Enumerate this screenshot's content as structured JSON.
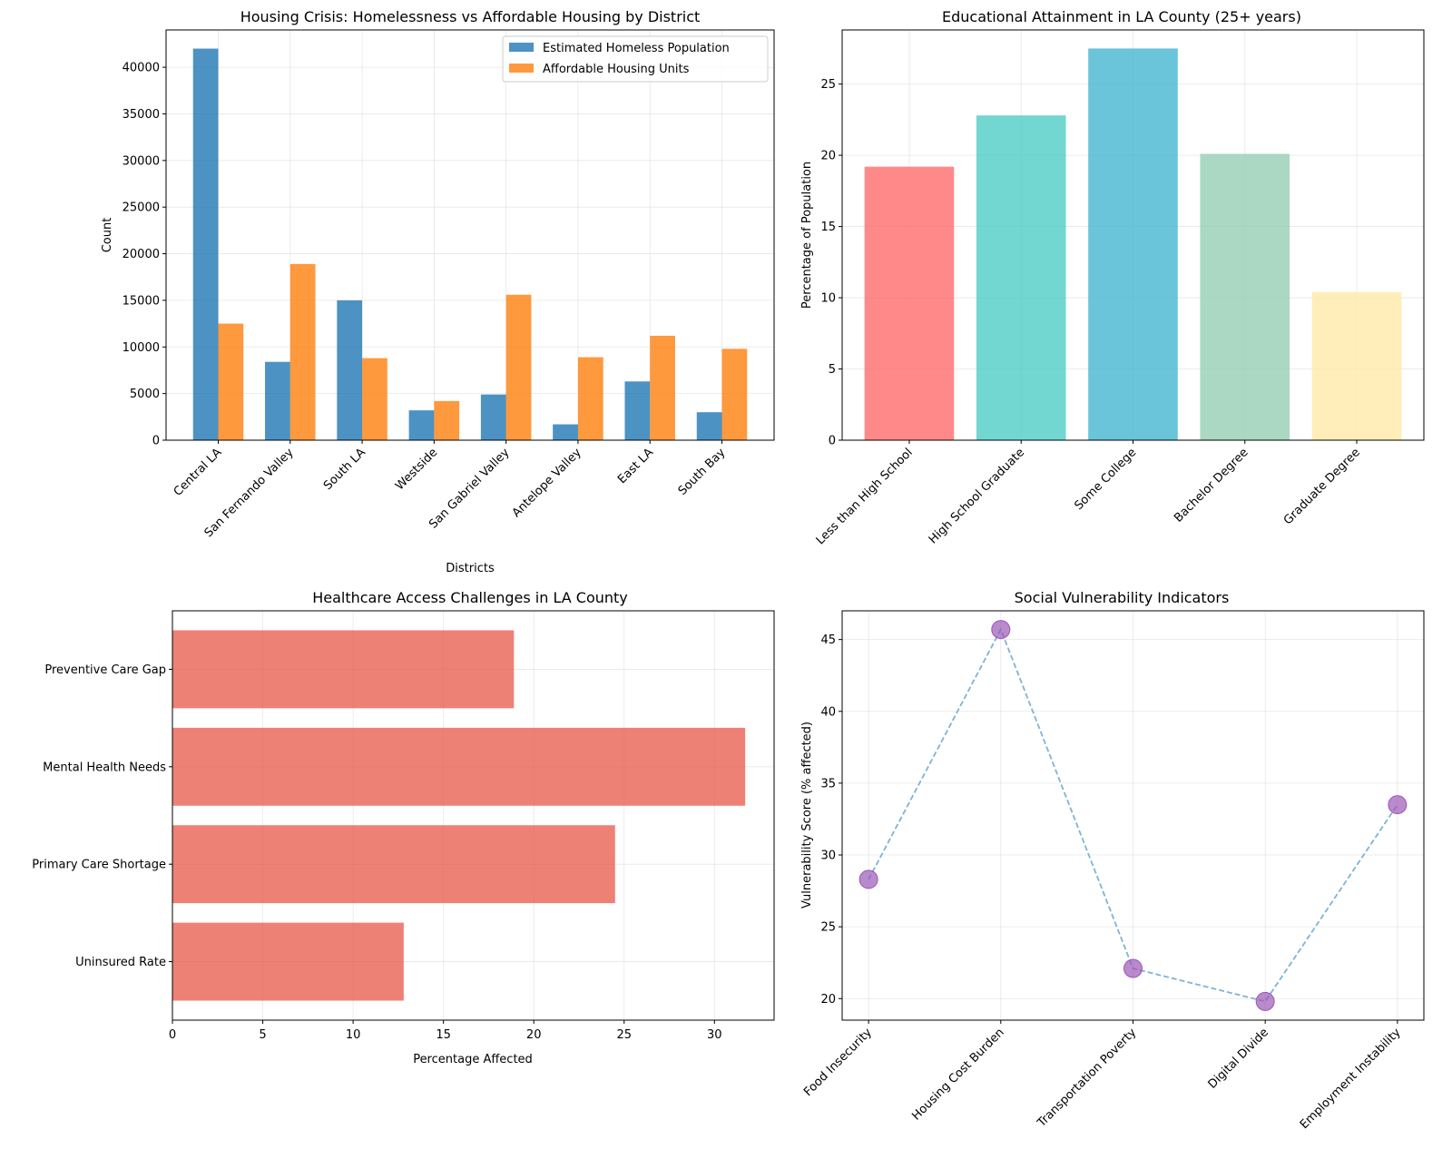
{
  "chart_data": [
    {
      "id": "housing",
      "type": "bar",
      "title": "Housing Crisis: Homelessness vs Affordable Housing by District",
      "xlabel": "Districts",
      "ylabel": "Count",
      "ylim": [
        0,
        44000
      ],
      "yticks": [
        0,
        5000,
        10000,
        15000,
        20000,
        25000,
        30000,
        35000,
        40000
      ],
      "grid": true,
      "legend": "top-right",
      "categories": [
        "Central LA",
        "San Fernando Valley",
        "South LA",
        "Westside",
        "San Gabriel Valley",
        "Antelope Valley",
        "East LA",
        "South Bay"
      ],
      "series": [
        {
          "name": "Estimated Homeless Population",
          "color": "#1f77b4",
          "values": [
            42000,
            8400,
            15000,
            3200,
            4900,
            1700,
            6300,
            3000
          ]
        },
        {
          "name": "Affordable Housing Units",
          "color": "#ff7f0e",
          "values": [
            12500,
            18900,
            8800,
            4200,
            15600,
            8900,
            11200,
            9800
          ]
        }
      ]
    },
    {
      "id": "education",
      "type": "bar",
      "title": "Educational Attainment in LA County (25+ years)",
      "xlabel": "",
      "ylabel": "Percentage of Population",
      "ylim": [
        0,
        28.8
      ],
      "yticks": [
        0,
        5,
        10,
        15,
        20,
        25
      ],
      "grid": true,
      "categories": [
        "Less than High School",
        "High School Graduate",
        "Some College",
        "Bachelor Degree",
        "Graduate Degree"
      ],
      "values": [
        19.2,
        22.8,
        27.5,
        20.1,
        10.4
      ],
      "colors": [
        "#ff6b6b",
        "#4ecdc4",
        "#45b7d1",
        "#96ceb4",
        "#ffeaa7"
      ]
    },
    {
      "id": "healthcare",
      "type": "barh",
      "title": "Healthcare Access Challenges in LA County",
      "xlabel": "Percentage Affected",
      "ylabel": "",
      "xlim": [
        0,
        33.3
      ],
      "xticks": [
        0,
        5,
        10,
        15,
        20,
        25,
        30
      ],
      "grid": true,
      "categories": [
        "Uninsured Rate",
        "Primary Care Shortage",
        "Mental Health Needs",
        "Preventive Care Gap"
      ],
      "values": [
        12.8,
        24.5,
        31.7,
        18.9
      ],
      "color": "#e74c3c"
    },
    {
      "id": "vulnerability",
      "type": "line",
      "title": "Social Vulnerability Indicators",
      "xlabel": "",
      "ylabel": "Vulnerability Score (% affected)",
      "ylim": [
        18.5,
        47.0
      ],
      "yticks": [
        20,
        25,
        30,
        35,
        40,
        45
      ],
      "grid": true,
      "categories": [
        "Food Insecurity",
        "Housing Cost Burden",
        "Transportation Poverty",
        "Digital Divide",
        "Employment Instability"
      ],
      "values": [
        28.3,
        45.7,
        22.1,
        19.8,
        33.5
      ],
      "line_color": "#7fb3d5",
      "marker_color": "#9b59b6"
    }
  ]
}
